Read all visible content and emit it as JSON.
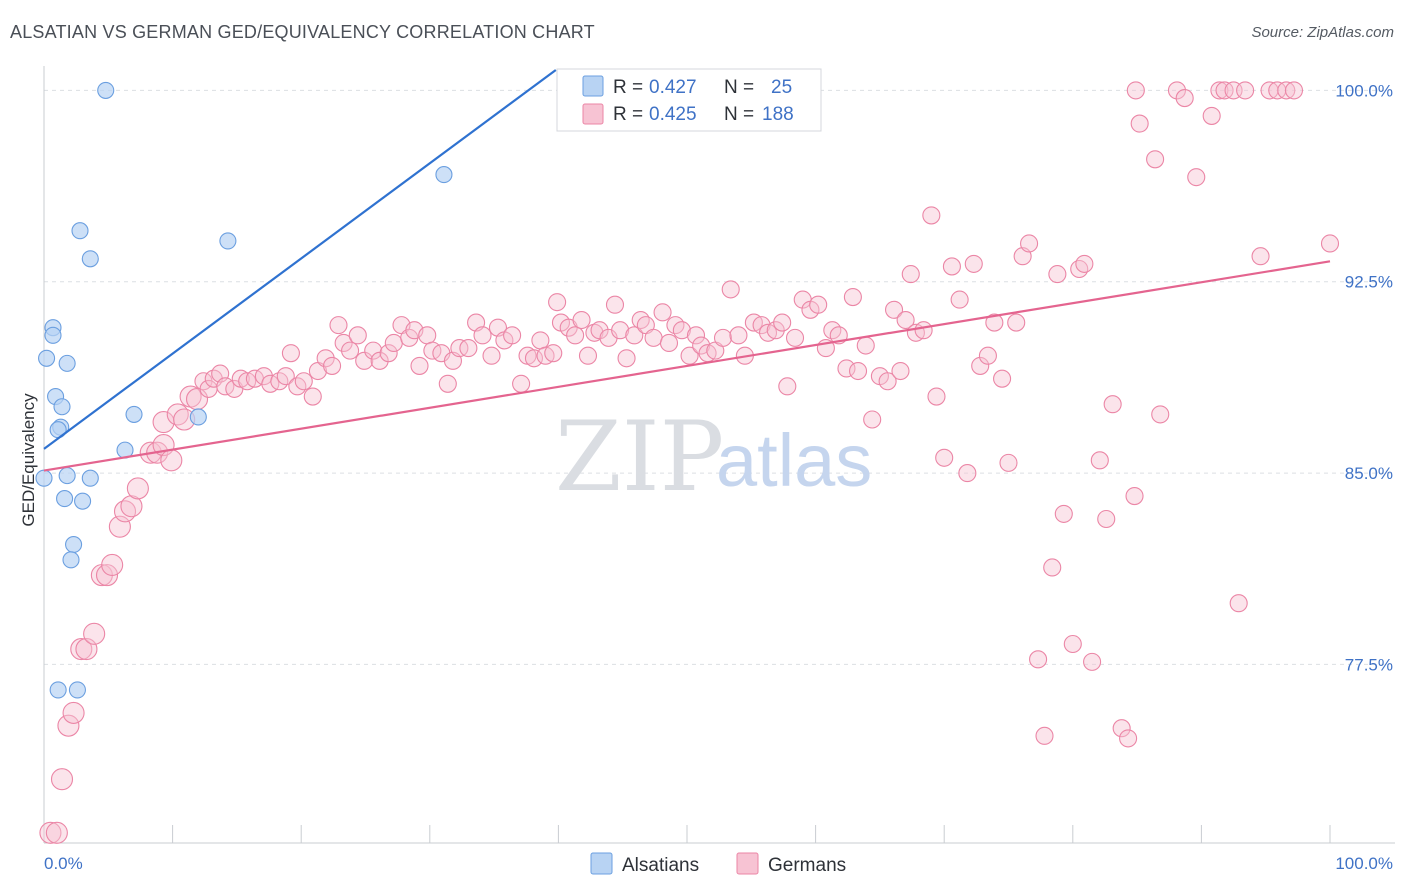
{
  "title": "ALSATIAN VS GERMAN GED/EQUIVALENCY CORRELATION CHART",
  "source": "Source: ZipAtlas.com",
  "watermark": {
    "zip": "ZIP",
    "atlas": "atlas"
  },
  "colors": {
    "alsatian_fill": "#b8d3f3",
    "alsatian_stroke": "#6b9fe0",
    "alsatian_line": "#2f72d0",
    "german_fill": "#f7c3d3",
    "german_stroke": "#eb86a6",
    "german_line": "#e4648f",
    "tick_text": "#3f72c6"
  },
  "legend": {
    "r_label": "R =",
    "n_label": "N =",
    "alsatian": {
      "r": "0.427",
      "n": "25"
    },
    "german": {
      "r": "0.425",
      "n": "188"
    }
  },
  "bottom_legend": {
    "alsatians": "Alsatians",
    "germans": "Germans"
  },
  "chart_data": {
    "type": "scatter",
    "xlabel": "",
    "ylabel": "GED/Equivalency",
    "xlim": [
      0,
      100
    ],
    "ylim": [
      70.5,
      100.8
    ],
    "x_tick_labels": [
      "0.0%",
      "100.0%"
    ],
    "y_ticks": [
      77.5,
      85.0,
      92.5,
      100.0
    ],
    "y_tick_labels": [
      "77.5%",
      "85.0%",
      "92.5%",
      "100.0%"
    ],
    "grid": true,
    "legend_position": "top-center",
    "series": [
      {
        "name": "Alsatians",
        "trend": {
          "x": [
            0,
            39.8
          ],
          "y": [
            85.95,
            100.8
          ]
        },
        "points": [
          [
            4.8,
            100.0
          ],
          [
            31.1,
            96.7
          ],
          [
            2.8,
            94.5
          ],
          [
            14.3,
            94.1
          ],
          [
            3.6,
            93.4
          ],
          [
            0.7,
            90.7
          ],
          [
            0.7,
            90.4
          ],
          [
            1.8,
            89.3
          ],
          [
            0.2,
            89.5
          ],
          [
            0.9,
            88.0
          ],
          [
            1.4,
            87.6
          ],
          [
            7.0,
            87.3
          ],
          [
            12.0,
            87.2
          ],
          [
            1.3,
            86.8
          ],
          [
            1.1,
            86.7
          ],
          [
            6.3,
            85.9
          ],
          [
            0.0,
            84.8
          ],
          [
            1.8,
            84.9
          ],
          [
            3.6,
            84.8
          ],
          [
            1.6,
            84.0
          ],
          [
            3.0,
            83.9
          ],
          [
            2.3,
            82.2
          ],
          [
            2.1,
            81.6
          ],
          [
            1.1,
            76.5
          ],
          [
            2.6,
            76.5
          ]
        ]
      },
      {
        "name": "Germans",
        "trend": {
          "x": [
            0,
            100
          ],
          "y": [
            85.1,
            93.3
          ]
        },
        "points": [
          [
            0.5,
            70.9
          ],
          [
            1.0,
            70.9
          ],
          [
            1.4,
            73.0
          ],
          [
            1.9,
            75.1
          ],
          [
            2.3,
            75.6
          ],
          [
            2.9,
            78.1
          ],
          [
            3.3,
            78.1
          ],
          [
            3.9,
            78.7
          ],
          [
            4.5,
            81.0
          ],
          [
            4.9,
            81.0
          ],
          [
            5.3,
            81.4
          ],
          [
            5.9,
            82.9
          ],
          [
            6.3,
            83.5
          ],
          [
            6.8,
            83.7
          ],
          [
            7.3,
            84.4
          ],
          [
            8.3,
            85.8
          ],
          [
            8.8,
            85.8
          ],
          [
            9.3,
            86.1
          ],
          [
            9.9,
            85.5
          ],
          [
            9.3,
            87.0
          ],
          [
            10.4,
            87.3
          ],
          [
            10.9,
            87.1
          ],
          [
            11.4,
            88.0
          ],
          [
            11.9,
            87.9
          ],
          [
            12.4,
            88.6
          ],
          [
            12.8,
            88.3
          ],
          [
            13.2,
            88.7
          ],
          [
            13.7,
            88.9
          ],
          [
            14.1,
            88.4
          ],
          [
            14.8,
            88.3
          ],
          [
            15.3,
            88.7
          ],
          [
            15.8,
            88.6
          ],
          [
            16.4,
            88.7
          ],
          [
            17.1,
            88.8
          ],
          [
            17.6,
            88.5
          ],
          [
            18.3,
            88.6
          ],
          [
            18.8,
            88.8
          ],
          [
            19.2,
            89.7
          ],
          [
            19.7,
            88.4
          ],
          [
            20.2,
            88.6
          ],
          [
            20.9,
            88.0
          ],
          [
            21.3,
            89.0
          ],
          [
            21.9,
            89.5
          ],
          [
            22.4,
            89.2
          ],
          [
            22.9,
            90.8
          ],
          [
            23.3,
            90.1
          ],
          [
            23.8,
            89.8
          ],
          [
            24.4,
            90.4
          ],
          [
            24.9,
            89.4
          ],
          [
            25.6,
            89.8
          ],
          [
            26.1,
            89.4
          ],
          [
            26.8,
            89.7
          ],
          [
            27.2,
            90.1
          ],
          [
            27.8,
            90.8
          ],
          [
            28.4,
            90.3
          ],
          [
            28.8,
            90.6
          ],
          [
            29.2,
            89.2
          ],
          [
            29.8,
            90.4
          ],
          [
            30.2,
            89.8
          ],
          [
            30.9,
            89.7
          ],
          [
            31.4,
            88.5
          ],
          [
            31.8,
            89.4
          ],
          [
            32.3,
            89.9
          ],
          [
            33.0,
            89.9
          ],
          [
            33.6,
            90.9
          ],
          [
            34.1,
            90.4
          ],
          [
            34.8,
            89.6
          ],
          [
            35.3,
            90.7
          ],
          [
            35.8,
            90.2
          ],
          [
            36.4,
            90.4
          ],
          [
            37.1,
            88.5
          ],
          [
            37.6,
            89.6
          ],
          [
            38.1,
            89.5
          ],
          [
            38.6,
            90.2
          ],
          [
            39.0,
            89.6
          ],
          [
            39.6,
            89.7
          ],
          [
            39.9,
            91.7
          ],
          [
            40.2,
            90.9
          ],
          [
            40.8,
            90.7
          ],
          [
            41.3,
            90.4
          ],
          [
            41.8,
            91.0
          ],
          [
            42.3,
            89.6
          ],
          [
            42.8,
            90.5
          ],
          [
            43.2,
            90.6
          ],
          [
            43.9,
            90.3
          ],
          [
            44.4,
            91.6
          ],
          [
            44.8,
            90.6
          ],
          [
            45.3,
            89.5
          ],
          [
            45.9,
            90.4
          ],
          [
            46.4,
            91.0
          ],
          [
            46.8,
            90.8
          ],
          [
            47.4,
            90.3
          ],
          [
            48.1,
            91.3
          ],
          [
            48.6,
            90.1
          ],
          [
            49.1,
            90.8
          ],
          [
            49.6,
            90.6
          ],
          [
            50.2,
            89.6
          ],
          [
            50.7,
            90.4
          ],
          [
            51.1,
            90.0
          ],
          [
            51.6,
            89.7
          ],
          [
            52.2,
            89.8
          ],
          [
            52.8,
            90.3
          ],
          [
            53.4,
            92.2
          ],
          [
            54.0,
            90.4
          ],
          [
            54.5,
            89.6
          ],
          [
            55.2,
            90.9
          ],
          [
            55.8,
            90.8
          ],
          [
            56.3,
            90.5
          ],
          [
            56.9,
            90.6
          ],
          [
            57.4,
            90.9
          ],
          [
            57.8,
            88.4
          ],
          [
            58.4,
            90.3
          ],
          [
            59.0,
            91.8
          ],
          [
            59.6,
            91.4
          ],
          [
            60.2,
            91.6
          ],
          [
            60.8,
            89.9
          ],
          [
            61.3,
            90.6
          ],
          [
            61.8,
            90.4
          ],
          [
            62.4,
            89.1
          ],
          [
            62.9,
            91.9
          ],
          [
            63.3,
            89.0
          ],
          [
            63.9,
            90.0
          ],
          [
            64.4,
            87.1
          ],
          [
            65.0,
            88.8
          ],
          [
            65.6,
            88.6
          ],
          [
            66.1,
            91.4
          ],
          [
            66.6,
            89.0
          ],
          [
            67.0,
            91.0
          ],
          [
            67.4,
            92.8
          ],
          [
            67.8,
            90.5
          ],
          [
            68.4,
            90.6
          ],
          [
            69.0,
            95.1
          ],
          [
            69.4,
            88.0
          ],
          [
            70.0,
            85.6
          ],
          [
            70.6,
            93.1
          ],
          [
            71.2,
            91.8
          ],
          [
            71.8,
            85.0
          ],
          [
            72.3,
            93.2
          ],
          [
            72.8,
            89.2
          ],
          [
            73.4,
            89.6
          ],
          [
            73.9,
            90.9
          ],
          [
            74.5,
            88.7
          ],
          [
            75.0,
            85.4
          ],
          [
            75.6,
            90.9
          ],
          [
            76.1,
            93.5
          ],
          [
            76.6,
            94.0
          ],
          [
            77.3,
            77.7
          ],
          [
            77.8,
            74.7
          ],
          [
            78.4,
            81.3
          ],
          [
            78.8,
            92.8
          ],
          [
            79.3,
            83.4
          ],
          [
            80.0,
            78.3
          ],
          [
            80.5,
            93.0
          ],
          [
            80.9,
            93.2
          ],
          [
            81.5,
            77.6
          ],
          [
            82.1,
            85.5
          ],
          [
            82.6,
            83.2
          ],
          [
            83.1,
            87.7
          ],
          [
            83.8,
            75.0
          ],
          [
            84.3,
            74.6
          ],
          [
            84.8,
            84.1
          ],
          [
            84.9,
            100.0
          ],
          [
            85.2,
            98.7
          ],
          [
            86.4,
            97.3
          ],
          [
            86.8,
            87.3
          ],
          [
            88.1,
            100.0
          ],
          [
            88.7,
            99.7
          ],
          [
            89.6,
            96.6
          ],
          [
            90.8,
            99.0
          ],
          [
            91.4,
            100.0
          ],
          [
            91.8,
            100.0
          ],
          [
            92.5,
            100.0
          ],
          [
            92.9,
            79.9
          ],
          [
            93.4,
            100.0
          ],
          [
            94.6,
            93.5
          ],
          [
            95.3,
            100.0
          ],
          [
            95.9,
            100.0
          ],
          [
            96.6,
            100.0
          ],
          [
            97.2,
            100.0
          ],
          [
            100.0,
            94.0
          ]
        ]
      }
    ]
  }
}
